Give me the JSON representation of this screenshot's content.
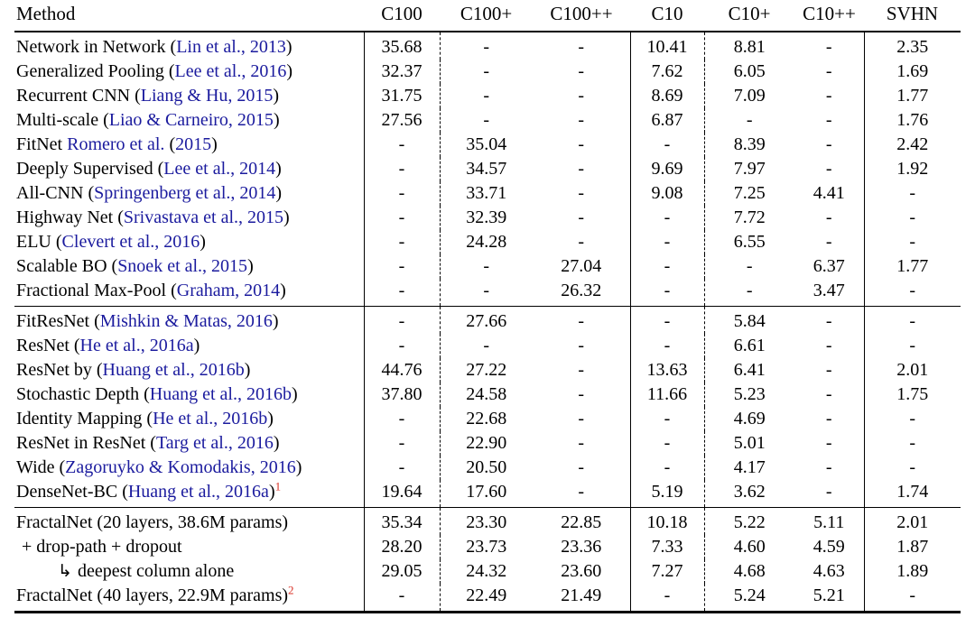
{
  "colors": {
    "text": "#000000",
    "citation_blue": "#1b1b9e",
    "footnote_red": "#d93025",
    "background": "#ffffff"
  },
  "table": {
    "columns": [
      "Method",
      "C100",
      "C100+",
      "C100++",
      "C10",
      "C10+",
      "C10++",
      "SVHN"
    ],
    "groups": [
      {
        "rows": [
          {
            "indent": 0,
            "method": [
              {
                "text": "Network in Network (",
                "style": "plain"
              },
              {
                "text": "Lin et al., 2013",
                "style": "cite"
              },
              {
                "text": ")",
                "style": "plain"
              }
            ],
            "values": [
              "35.68",
              "-",
              "-",
              "10.41",
              "8.81",
              "-",
              "2.35"
            ]
          },
          {
            "indent": 0,
            "method": [
              {
                "text": "Generalized Pooling (",
                "style": "plain"
              },
              {
                "text": "Lee et al., 2016",
                "style": "cite"
              },
              {
                "text": ")",
                "style": "plain"
              }
            ],
            "values": [
              "32.37",
              "-",
              "-",
              "7.62",
              "6.05",
              "-",
              "1.69"
            ]
          },
          {
            "indent": 0,
            "method": [
              {
                "text": "Recurrent CNN (",
                "style": "plain"
              },
              {
                "text": "Liang & Hu, 2015",
                "style": "cite"
              },
              {
                "text": ")",
                "style": "plain"
              }
            ],
            "values": [
              "31.75",
              "-",
              "-",
              "8.69",
              "7.09",
              "-",
              "1.77"
            ]
          },
          {
            "indent": 0,
            "method": [
              {
                "text": "Multi-scale (",
                "style": "plain"
              },
              {
                "text": "Liao & Carneiro, 2015",
                "style": "cite"
              },
              {
                "text": ")",
                "style": "plain"
              }
            ],
            "values": [
              "27.56",
              "-",
              "-",
              "6.87",
              "-",
              "-",
              "1.76"
            ]
          },
          {
            "indent": 0,
            "method": [
              {
                "text": "FitNet ",
                "style": "plain"
              },
              {
                "text": "Romero et al.",
                "style": "cite"
              },
              {
                "text": " (",
                "style": "plain"
              },
              {
                "text": "2015",
                "style": "cite"
              },
              {
                "text": ")",
                "style": "plain"
              }
            ],
            "values": [
              "-",
              "35.04",
              "-",
              "-",
              "8.39",
              "-",
              "2.42"
            ]
          },
          {
            "indent": 0,
            "method": [
              {
                "text": "Deeply Supervised (",
                "style": "plain"
              },
              {
                "text": "Lee et al., 2014",
                "style": "cite"
              },
              {
                "text": ")",
                "style": "plain"
              }
            ],
            "values": [
              "-",
              "34.57",
              "-",
              "9.69",
              "7.97",
              "-",
              "1.92"
            ]
          },
          {
            "indent": 0,
            "method": [
              {
                "text": "All-CNN (",
                "style": "plain"
              },
              {
                "text": "Springenberg et al., 2014",
                "style": "cite"
              },
              {
                "text": ")",
                "style": "plain"
              }
            ],
            "values": [
              "-",
              "33.71",
              "-",
              "9.08",
              "7.25",
              "4.41",
              "-"
            ]
          },
          {
            "indent": 0,
            "method": [
              {
                "text": "Highway Net (",
                "style": "plain"
              },
              {
                "text": "Srivastava et al., 2015",
                "style": "cite"
              },
              {
                "text": ")",
                "style": "plain"
              }
            ],
            "values": [
              "-",
              "32.39",
              "-",
              "-",
              "7.72",
              "-",
              "-"
            ]
          },
          {
            "indent": 0,
            "method": [
              {
                "text": "ELU (",
                "style": "plain"
              },
              {
                "text": "Clevert et al., 2016",
                "style": "cite"
              },
              {
                "text": ")",
                "style": "plain"
              }
            ],
            "values": [
              "-",
              "24.28",
              "-",
              "-",
              "6.55",
              "-",
              "-"
            ]
          },
          {
            "indent": 0,
            "method": [
              {
                "text": "Scalable BO (",
                "style": "plain"
              },
              {
                "text": "Snoek et al., 2015",
                "style": "cite"
              },
              {
                "text": ")",
                "style": "plain"
              }
            ],
            "values": [
              "-",
              "-",
              "27.04",
              "-",
              "-",
              "6.37",
              "1.77"
            ]
          },
          {
            "indent": 0,
            "method": [
              {
                "text": "Fractional Max-Pool (",
                "style": "plain"
              },
              {
                "text": "Graham, 2014",
                "style": "cite"
              },
              {
                "text": ")",
                "style": "plain"
              }
            ],
            "values": [
              "-",
              "-",
              "26.32",
              "-",
              "-",
              "3.47",
              "-"
            ]
          }
        ]
      },
      {
        "rows": [
          {
            "indent": 0,
            "method": [
              {
                "text": "FitResNet (",
                "style": "plain"
              },
              {
                "text": "Mishkin & Matas, 2016",
                "style": "cite"
              },
              {
                "text": ")",
                "style": "plain"
              }
            ],
            "values": [
              "-",
              "27.66",
              "-",
              "-",
              "5.84",
              "-",
              "-"
            ]
          },
          {
            "indent": 0,
            "method": [
              {
                "text": "ResNet (",
                "style": "plain"
              },
              {
                "text": "He et al., 2016a",
                "style": "cite"
              },
              {
                "text": ")",
                "style": "plain"
              }
            ],
            "values": [
              "-",
              "-",
              "-",
              "-",
              "6.61",
              "-",
              "-"
            ]
          },
          {
            "indent": 0,
            "method": [
              {
                "text": "ResNet by (",
                "style": "plain"
              },
              {
                "text": "Huang et al., 2016b",
                "style": "cite"
              },
              {
                "text": ")",
                "style": "plain"
              }
            ],
            "values": [
              "44.76",
              "27.22",
              "-",
              "13.63",
              "6.41",
              "-",
              "2.01"
            ]
          },
          {
            "indent": 0,
            "method": [
              {
                "text": "Stochastic Depth (",
                "style": "plain"
              },
              {
                "text": "Huang et al., 2016b",
                "style": "cite"
              },
              {
                "text": ")",
                "style": "plain"
              }
            ],
            "values": [
              "37.80",
              "24.58",
              "-",
              "11.66",
              "5.23",
              "-",
              "1.75"
            ]
          },
          {
            "indent": 0,
            "method": [
              {
                "text": "Identity Mapping (",
                "style": "plain"
              },
              {
                "text": "He et al., 2016b",
                "style": "cite"
              },
              {
                "text": ")",
                "style": "plain"
              }
            ],
            "values": [
              "-",
              "22.68",
              "-",
              "-",
              "4.69",
              "-",
              "-"
            ]
          },
          {
            "indent": 0,
            "method": [
              {
                "text": "ResNet in ResNet (",
                "style": "plain"
              },
              {
                "text": "Targ et al., 2016",
                "style": "cite"
              },
              {
                "text": ")",
                "style": "plain"
              }
            ],
            "values": [
              "-",
              "22.90",
              "-",
              "-",
              "5.01",
              "-",
              "-"
            ]
          },
          {
            "indent": 0,
            "method": [
              {
                "text": "Wide (",
                "style": "plain"
              },
              {
                "text": "Zagoruyko & Komodakis, 2016",
                "style": "cite"
              },
              {
                "text": ")",
                "style": "plain"
              }
            ],
            "values": [
              "-",
              "20.50",
              "-",
              "-",
              "4.17",
              "-",
              "-"
            ]
          },
          {
            "indent": 0,
            "method": [
              {
                "text": "DenseNet-BC (",
                "style": "plain"
              },
              {
                "text": "Huang et al., 2016a",
                "style": "cite"
              },
              {
                "text": ")",
                "style": "plain"
              },
              {
                "text": "1",
                "style": "sup"
              }
            ],
            "values": [
              "19.64",
              "17.60",
              "-",
              "5.19",
              "3.62",
              "-",
              "1.74"
            ]
          }
        ]
      },
      {
        "rows": [
          {
            "indent": 0,
            "method": [
              {
                "text": "FractalNet (20 layers, 38.6M params)",
                "style": "plain"
              }
            ],
            "values": [
              "35.34",
              "23.30",
              "22.85",
              "10.18",
              "5.22",
              "5.11",
              "2.01"
            ]
          },
          {
            "indent": 1,
            "method": [
              {
                "text": "+ drop-path + dropout",
                "style": "plain"
              }
            ],
            "values": [
              "28.20",
              "23.73",
              "23.36",
              "7.33",
              "4.60",
              "4.59",
              "1.87"
            ]
          },
          {
            "indent": 2,
            "method": [
              {
                "text": "↳ ",
                "style": "arrow"
              },
              {
                "text": "deepest column alone",
                "style": "plain"
              }
            ],
            "values": [
              "29.05",
              "24.32",
              "23.60",
              "7.27",
              "4.68",
              "4.63",
              "1.89"
            ]
          },
          {
            "indent": 0,
            "method": [
              {
                "text": "FractalNet (40 layers, 22.9M params)",
                "style": "plain"
              },
              {
                "text": "2",
                "style": "sup"
              }
            ],
            "values": [
              "-",
              "22.49",
              "21.49",
              "-",
              "5.24",
              "5.21",
              "-"
            ]
          }
        ]
      }
    ]
  }
}
